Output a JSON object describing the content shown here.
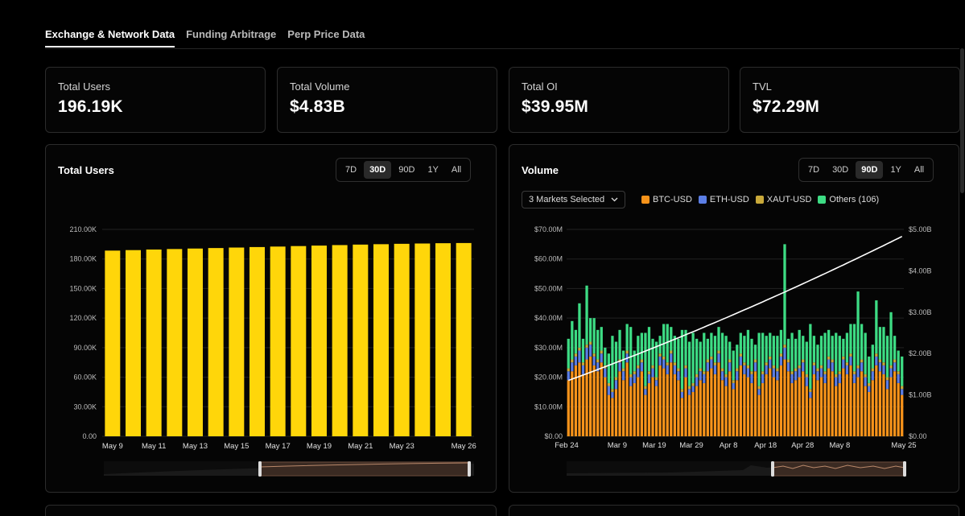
{
  "tabs": [
    {
      "label": "Exchange & Network Data",
      "active": true
    },
    {
      "label": "Funding Arbitrage",
      "active": false
    },
    {
      "label": "Perp Price Data",
      "active": false
    }
  ],
  "stats": [
    {
      "label": "Total Users",
      "value": "196.19K"
    },
    {
      "label": "Total Volume",
      "value": "$4.83B"
    },
    {
      "label": "Total OI",
      "value": "$39.95M"
    },
    {
      "label": "TVL",
      "value": "$72.29M"
    }
  ],
  "users_panel": {
    "title": "Total Users",
    "ranges": [
      "7D",
      "30D",
      "90D",
      "1Y",
      "All"
    ],
    "active_range": "30D"
  },
  "volume_panel": {
    "title": "Volume",
    "ranges": [
      "7D",
      "30D",
      "90D",
      "1Y",
      "All"
    ],
    "active_range": "90D",
    "market_select": "3 Markets Selected",
    "legend": [
      {
        "label": "BTC-USD",
        "color": "#f7931a"
      },
      {
        "label": "ETH-USD",
        "color": "#5b7ee5"
      },
      {
        "label": "XAUT-USD",
        "color": "#c9a93a"
      },
      {
        "label": "Others (106)",
        "color": "#3ddc84"
      }
    ]
  },
  "chart_data": [
    {
      "type": "bar",
      "title": "Total Users",
      "categories": [
        "May 9",
        "May 10",
        "May 11",
        "May 12",
        "May 13",
        "May 14",
        "May 15",
        "May 16",
        "May 17",
        "May 18",
        "May 19",
        "May 20",
        "May 21",
        "May 22",
        "May 23",
        "May 24",
        "May 25",
        "May 26"
      ],
      "tick_labels": [
        "May 9",
        "May 11",
        "May 13",
        "May 15",
        "May 17",
        "May 19",
        "May 21",
        "May 23",
        "May 26"
      ],
      "values": [
        188.5,
        189.0,
        189.6,
        190.1,
        190.6,
        191.1,
        191.6,
        192.1,
        192.6,
        193.1,
        193.6,
        194.1,
        194.6,
        195.0,
        195.4,
        195.7,
        196.0,
        196.19
      ],
      "ylim": [
        0,
        210
      ],
      "yticks": [
        "0.00",
        "30.00K",
        "60.00K",
        "90.00K",
        "120.00K",
        "150.00K",
        "180.00K",
        "210.00K"
      ],
      "color": "#ffd60a"
    },
    {
      "type": "bar",
      "title": "Volume",
      "stacked": true,
      "x_range": [
        "Feb 24",
        "May 25"
      ],
      "tick_labels": [
        "Feb 24",
        "Mar 9",
        "Mar 19",
        "Mar 29",
        "Apr 8",
        "Apr 18",
        "Apr 28",
        "May 8",
        "May 25"
      ],
      "ylim": [
        0,
        70
      ],
      "yticks_left": [
        "$0.00",
        "$10.00M",
        "$20.00M",
        "$30.00M",
        "$40.00M",
        "$50.00M",
        "$60.00M",
        "$70.00M"
      ],
      "ylim_right": [
        0,
        5
      ],
      "yticks_right": [
        "$0.00",
        "$1.00B",
        "$2.00B",
        "$3.00B",
        "$4.00B",
        "$5.00B"
      ],
      "series": [
        {
          "name": "BTC-USD",
          "values": [
            19,
            22,
            24,
            25,
            21,
            26,
            27,
            24,
            22,
            25,
            20,
            14,
            13,
            16,
            22,
            19,
            25,
            17,
            18,
            20,
            22,
            14,
            18,
            20,
            17,
            24,
            23,
            21,
            25,
            21,
            19,
            13,
            20,
            14,
            15,
            17,
            19,
            18,
            22,
            23,
            21,
            25,
            19,
            17,
            22,
            16,
            19,
            24,
            21,
            20,
            18,
            22,
            14,
            18,
            21,
            23,
            20,
            19,
            24,
            26,
            22,
            18,
            19,
            20,
            22,
            17,
            13,
            21,
            19,
            20,
            18,
            23,
            22,
            17,
            18,
            23,
            21,
            24,
            18,
            20,
            22,
            17,
            15,
            19,
            24,
            22,
            21,
            16,
            20,
            22,
            18,
            14
          ]
        },
        {
          "name": "ETH-USD",
          "values": [
            3,
            3,
            3,
            4,
            3,
            4,
            4,
            3,
            3,
            3,
            3,
            3,
            2,
            3,
            3,
            3,
            3,
            3,
            3,
            3,
            3,
            2,
            3,
            3,
            2,
            3,
            3,
            3,
            3,
            3,
            3,
            2,
            3,
            2,
            2,
            3,
            3,
            3,
            3,
            3,
            3,
            3,
            3,
            3,
            3,
            2,
            3,
            3,
            3,
            3,
            3,
            3,
            2,
            3,
            3,
            3,
            3,
            3,
            3,
            4,
            3,
            3,
            3,
            3,
            3,
            3,
            2,
            3,
            3,
            3,
            3,
            3,
            3,
            3,
            3,
            3,
            3,
            3,
            3,
            3,
            3,
            3,
            2,
            3,
            3,
            3,
            3,
            3,
            3,
            3,
            3,
            2
          ]
        },
        {
          "name": "XAUT-USD",
          "values": [
            1,
            1,
            1,
            1,
            1,
            1,
            1,
            1,
            1,
            1,
            1,
            1,
            1,
            1,
            1,
            1,
            1,
            1,
            1,
            1,
            1,
            1,
            1,
            1,
            1,
            1,
            1,
            1,
            1,
            1,
            1,
            1,
            1,
            1,
            1,
            1,
            1,
            1,
            1,
            1,
            1,
            1,
            1,
            1,
            1,
            1,
            1,
            1,
            1,
            1,
            1,
            1,
            1,
            1,
            1,
            1,
            1,
            1,
            1,
            1,
            1,
            1,
            1,
            1,
            1,
            1,
            1,
            1,
            1,
            1,
            1,
            1,
            1,
            1,
            1,
            1,
            1,
            1,
            1,
            1,
            1,
            1,
            1,
            1,
            1,
            1,
            1,
            1,
            1,
            1,
            1,
            1
          ]
        },
        {
          "name": "Others (106)",
          "values": [
            10,
            13,
            8,
            15,
            8,
            20,
            8,
            12,
            10,
            8,
            6,
            10,
            18,
            12,
            10,
            6,
            9,
            16,
            7,
            10,
            9,
            18,
            15,
            9,
            12,
            6,
            11,
            13,
            8,
            9,
            10,
            20,
            12,
            15,
            17,
            12,
            9,
            13,
            7,
            8,
            9,
            8,
            12,
            13,
            6,
            10,
            8,
            7,
            9,
            12,
            11,
            5,
            18,
            13,
            9,
            8,
            10,
            11,
            8,
            34,
            7,
            13,
            10,
            12,
            8,
            11,
            22,
            9,
            8,
            10,
            13,
            9,
            8,
            14,
            12,
            6,
            10,
            10,
            16,
            25,
            12,
            14,
            9,
            8,
            18,
            11,
            12,
            14,
            18,
            8,
            7,
            10
          ]
        }
      ],
      "cumulative_line": {
        "start": 1.35,
        "end": 4.83,
        "color": "#ffffff"
      }
    }
  ]
}
